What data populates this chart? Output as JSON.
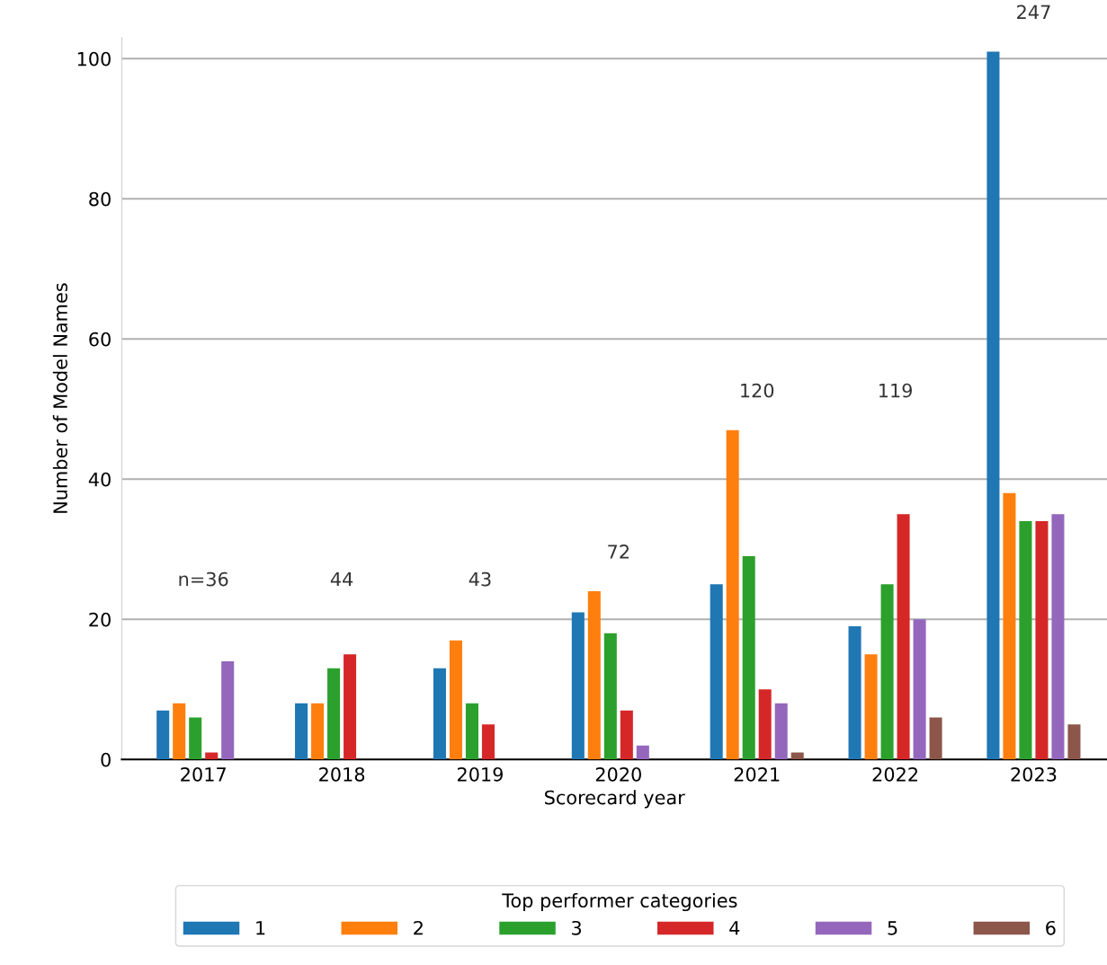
{
  "chart_data": {
    "type": "bar",
    "xlabel": "Scorecard year",
    "ylabel": "Number of Model Names",
    "legend_title": "Top performer categories",
    "legend": "bottom",
    "grid": "y",
    "categories": [
      "2017",
      "2018",
      "2019",
      "2020",
      "2021",
      "2022",
      "2023"
    ],
    "ylim": [
      0,
      103
    ],
    "yticks": [
      0,
      20,
      40,
      60,
      80,
      100
    ],
    "series": [
      {
        "name": "1",
        "color": "#1f77b4",
        "values": [
          7,
          8,
          13,
          21,
          25,
          19,
          101
        ]
      },
      {
        "name": "2",
        "color": "#ff7f0e",
        "values": [
          8,
          8,
          17,
          24,
          47,
          15,
          38
        ]
      },
      {
        "name": "3",
        "color": "#2ca02c",
        "values": [
          6,
          13,
          8,
          18,
          29,
          25,
          34
        ]
      },
      {
        "name": "4",
        "color": "#d62728",
        "values": [
          1,
          15,
          5,
          7,
          10,
          35,
          34
        ]
      },
      {
        "name": "5",
        "color": "#9467bd",
        "values": [
          14,
          0,
          0,
          2,
          8,
          20,
          35
        ]
      },
      {
        "name": "6",
        "color": "#8c564b",
        "values": [
          0,
          0,
          0,
          0,
          1,
          6,
          5
        ]
      }
    ],
    "annotations": [
      "n=36",
      "44",
      "43",
      "72",
      "120",
      "119",
      "247"
    ]
  }
}
